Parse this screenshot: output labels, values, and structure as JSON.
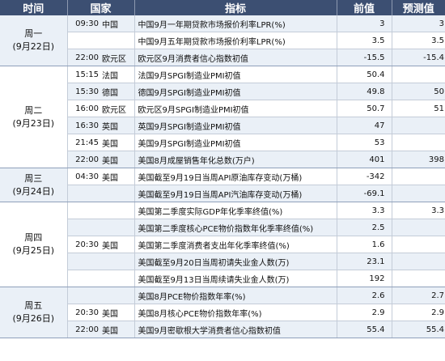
{
  "headers": {
    "time": "时间",
    "country": "国家",
    "indicator": "指标",
    "previous": "前值",
    "forecast": "预测值"
  },
  "days": [
    {
      "weekday": "周一",
      "date": "(9月22日)"
    },
    {
      "weekday": "周二",
      "date": "(9月23日)"
    },
    {
      "weekday": "周三",
      "date": "(9月24日)"
    },
    {
      "weekday": "周四",
      "date": "(9月25日)"
    },
    {
      "weekday": "周五",
      "date": "(9月26日)"
    }
  ],
  "rows": [
    {
      "time": "09:30",
      "country": "中国",
      "indicator": "中国9月一年期贷款市场报价利率LPR(%)",
      "previous": "3",
      "forecast": "3"
    },
    {
      "time": "",
      "country": "",
      "indicator": "中国9月五年期贷款市场报价利率LPR(%)",
      "previous": "3.5",
      "forecast": "3.5"
    },
    {
      "time": "22:00",
      "country": "欧元区",
      "indicator": "欧元区9月消费者信心指数初值",
      "previous": "-15.5",
      "forecast": "-15.4"
    },
    {
      "time": "15:15",
      "country": "法国",
      "indicator": "法国9月SPGI制造业PMI初值",
      "previous": "50.4",
      "forecast": ""
    },
    {
      "time": "15:30",
      "country": "德国",
      "indicator": "德国9月SPGI制造业PMI初值",
      "previous": "49.8",
      "forecast": "50"
    },
    {
      "time": "16:00",
      "country": "欧元区",
      "indicator": "欧元区9月SPGI制造业PMI初值",
      "previous": "50.7",
      "forecast": "51"
    },
    {
      "time": "16:30",
      "country": "英国",
      "indicator": "英国9月SPGI制造业PMI初值",
      "previous": "47",
      "forecast": ""
    },
    {
      "time": "21:45",
      "country": "美国",
      "indicator": "美国9月SPGI制造业PMI初值",
      "previous": "53",
      "forecast": ""
    },
    {
      "time": "22:00",
      "country": "美国",
      "indicator": "美国8月成屋销售年化总数(万户)",
      "previous": "401",
      "forecast": "398"
    },
    {
      "time": "04:30",
      "country": "美国",
      "indicator": "美国截至9月19日当周API原油库存变动(万桶)",
      "previous": "-342",
      "forecast": ""
    },
    {
      "time": "",
      "country": "",
      "indicator": "美国截至9月19日当周API汽油库存变动(万桶)",
      "previous": "-69.1",
      "forecast": ""
    },
    {
      "time": "",
      "country": "",
      "indicator": "美国第二季度实际GDP年化季率终值(%)",
      "previous": "3.3",
      "forecast": "3.3"
    },
    {
      "time": "",
      "country": "",
      "indicator": "美国第二季度核心PCE物价指数年化季率终值(%)",
      "previous": "2.5",
      "forecast": ""
    },
    {
      "time": "20:30",
      "country": "美国",
      "indicator": "美国第二季度消费者支出年化季率终值(%)",
      "previous": "1.6",
      "forecast": ""
    },
    {
      "time": "",
      "country": "",
      "indicator": "美国截至9月20日当周初请失业金人数(万)",
      "previous": "23.1",
      "forecast": ""
    },
    {
      "time": "",
      "country": "",
      "indicator": "美国截至9月13日当周续请失业金人数(万)",
      "previous": "192",
      "forecast": ""
    },
    {
      "time": "",
      "country": "",
      "indicator": "美国8月PCE物价指数年率(%)",
      "previous": "2.6",
      "forecast": "2.7"
    },
    {
      "time": "20:30",
      "country": "美国",
      "indicator": "美国8月核心PCE物价指数年率(%)",
      "previous": "2.9",
      "forecast": "2.9"
    },
    {
      "time": "22:00",
      "country": "美国",
      "indicator": "美国9月密歇根大学消费者信心指数初值",
      "previous": "55.4",
      "forecast": "55.4"
    }
  ]
}
